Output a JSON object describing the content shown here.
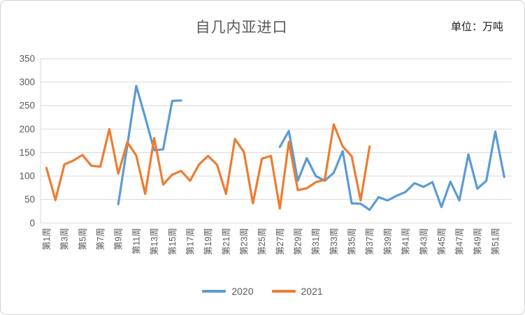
{
  "chart": {
    "title": "自几内亚进口",
    "unit_label": "单位：万吨"
  },
  "chart_data": {
    "type": "line",
    "title": "自几内亚进口",
    "unit": "万吨",
    "x_axis": "week",
    "weeks_total": 52,
    "x_tick_labels": [
      "第1周",
      "第3周",
      "第5周",
      "第7周",
      "第9周",
      "第11周",
      "第13周",
      "第15周",
      "第17周",
      "第19周",
      "第21周",
      "第23周",
      "第25周",
      "第27周",
      "第29周",
      "第31周",
      "第33周",
      "第35周",
      "第37周",
      "第39周",
      "第41周",
      "第43周",
      "第45周",
      "第47周",
      "第49周",
      "第51周"
    ],
    "ylim": [
      0,
      350
    ],
    "ytick_step": 50,
    "grid": true,
    "legend_position": "bottom",
    "series": [
      {
        "name": "2020",
        "color": "#5B9BD5",
        "values": [
          null,
          null,
          null,
          null,
          null,
          null,
          null,
          null,
          40,
          165,
          292,
          225,
          155,
          157,
          260,
          261,
          null,
          null,
          null,
          null,
          null,
          null,
          null,
          null,
          null,
          null,
          162,
          196,
          90,
          138,
          100,
          90,
          107,
          153,
          42,
          41,
          28,
          55,
          48,
          58,
          66,
          85,
          77,
          87,
          34,
          88,
          48,
          146,
          73,
          90,
          195,
          98
        ]
      },
      {
        "name": "2021",
        "color": "#ED7D31",
        "values": [
          117,
          49,
          125,
          133,
          145,
          122,
          120,
          200,
          105,
          172,
          144,
          62,
          181,
          82,
          103,
          111,
          90,
          125,
          143,
          124,
          62,
          179,
          151,
          42,
          137,
          143,
          31,
          173,
          70,
          74,
          87,
          92,
          210,
          163,
          142,
          48,
          163,
          null,
          null,
          null,
          null,
          null,
          null,
          null,
          null,
          null,
          null,
          null,
          null,
          null,
          null,
          null
        ]
      }
    ],
    "style": {
      "grid_color": "#D9D9D9",
      "axis_text_color": "#595959",
      "title_color": "#595959",
      "line_width": 3.2
    }
  }
}
